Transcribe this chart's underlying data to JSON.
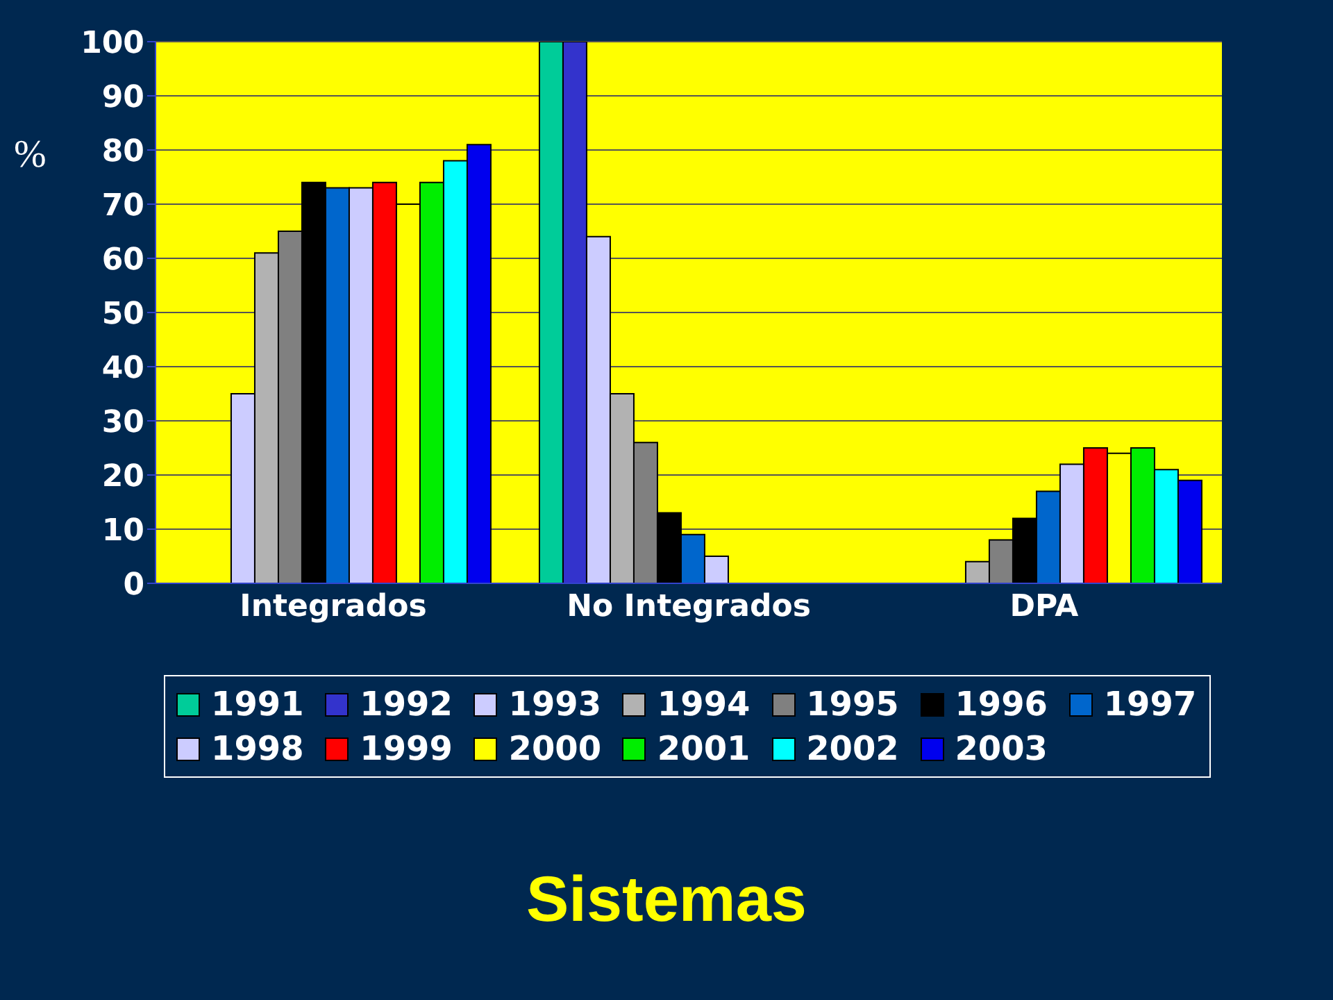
{
  "chart_data": {
    "type": "bar",
    "title": "Sistemas",
    "ylabel": "%",
    "categories": [
      "Integrados",
      "No Integrados",
      "DPA"
    ],
    "series": [
      {
        "name": "1991",
        "color": "#00cc99",
        "values": [
          0,
          100,
          0
        ]
      },
      {
        "name": "1992",
        "color": "#3333cc",
        "values": [
          0,
          100,
          0
        ]
      },
      {
        "name": "1993",
        "color": "#ccccff",
        "values": [
          35,
          64,
          0
        ]
      },
      {
        "name": "1994",
        "color": "#b2b2b2",
        "values": [
          61,
          35,
          4
        ]
      },
      {
        "name": "1995",
        "color": "#808080",
        "values": [
          65,
          26,
          8
        ]
      },
      {
        "name": "1996",
        "color": "#000000",
        "values": [
          74,
          13,
          12
        ]
      },
      {
        "name": "1997",
        "color": "#0066cc",
        "values": [
          73,
          9,
          17
        ]
      },
      {
        "name": "1998",
        "color": "#ccccff",
        "values": [
          73,
          5,
          22
        ]
      },
      {
        "name": "1999",
        "color": "#ff0000",
        "values": [
          74,
          0,
          25
        ]
      },
      {
        "name": "2000",
        "color": "#ffff00",
        "values": [
          70,
          0,
          24
        ]
      },
      {
        "name": "2001",
        "color": "#00ee00",
        "values": [
          74,
          0,
          25
        ]
      },
      {
        "name": "2002",
        "color": "#00ffff",
        "values": [
          78,
          0,
          21
        ]
      },
      {
        "name": "2003",
        "color": "#0000ee",
        "values": [
          81,
          0,
          19
        ]
      }
    ],
    "ylim": [
      0,
      100
    ],
    "yticks": [
      0,
      10,
      20,
      30,
      40,
      50,
      60,
      70,
      80,
      90,
      100
    ],
    "grid": "y",
    "legend": "bottom"
  }
}
